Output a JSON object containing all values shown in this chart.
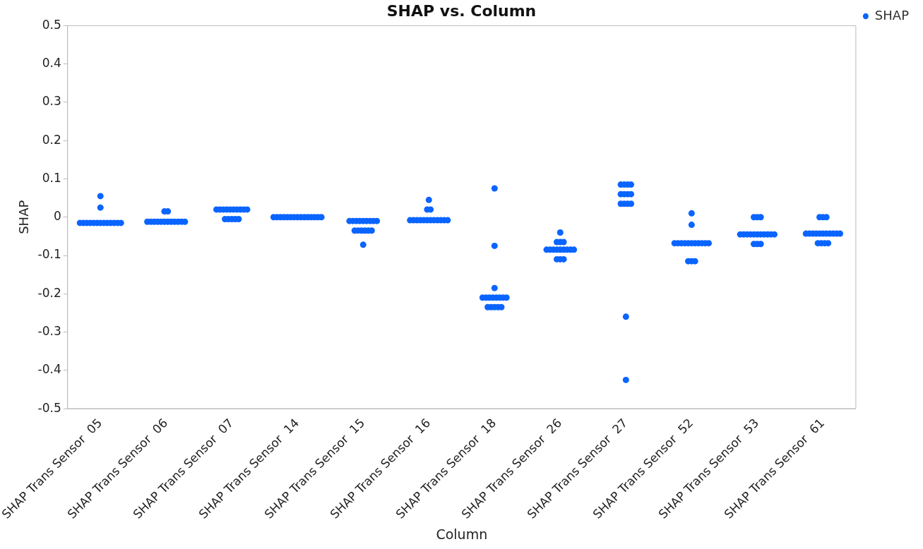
{
  "chart_data": {
    "type": "scatter",
    "title": "SHAP vs. Column",
    "xlabel": "Column",
    "ylabel": "SHAP",
    "categories": [
      "SHAP Trans Sensor  05",
      "SHAP Trans Sensor  06",
      "SHAP Trans Sensor  07",
      "SHAP Trans Sensor  14",
      "SHAP Trans Sensor  15",
      "SHAP Trans Sensor  16",
      "SHAP Trans Sensor  18",
      "SHAP Trans Sensor  26",
      "SHAP Trans Sensor  27",
      "SHAP Trans Sensor  52",
      "SHAP Trans Sensor  53",
      "SHAP Trans Sensor  61"
    ],
    "series": [
      {
        "name": "SHAP",
        "color": "#0a64ff",
        "x": [
          "SHAP Trans Sensor  05",
          "SHAP Trans Sensor  05",
          "SHAP Trans Sensor  05",
          "SHAP Trans Sensor  05",
          "SHAP Trans Sensor  05",
          "SHAP Trans Sensor  05",
          "SHAP Trans Sensor  05",
          "SHAP Trans Sensor  05",
          "SHAP Trans Sensor  05",
          "SHAP Trans Sensor  05",
          "SHAP Trans Sensor  05",
          "SHAP Trans Sensor  05",
          "SHAP Trans Sensor  05",
          "SHAP Trans Sensor  05",
          "SHAP Trans Sensor  05",
          "SHAP Trans Sensor  06",
          "SHAP Trans Sensor  06",
          "SHAP Trans Sensor  06",
          "SHAP Trans Sensor  06",
          "SHAP Trans Sensor  06",
          "SHAP Trans Sensor  06",
          "SHAP Trans Sensor  06",
          "SHAP Trans Sensor  06",
          "SHAP Trans Sensor  06",
          "SHAP Trans Sensor  06",
          "SHAP Trans Sensor  06",
          "SHAP Trans Sensor  06",
          "SHAP Trans Sensor  06",
          "SHAP Trans Sensor  06",
          "SHAP Trans Sensor  07",
          "SHAP Trans Sensor  07",
          "SHAP Trans Sensor  07",
          "SHAP Trans Sensor  07",
          "SHAP Trans Sensor  07",
          "SHAP Trans Sensor  07",
          "SHAP Trans Sensor  07",
          "SHAP Trans Sensor  07",
          "SHAP Trans Sensor  07",
          "SHAP Trans Sensor  07",
          "SHAP Trans Sensor  07",
          "SHAP Trans Sensor  07",
          "SHAP Trans Sensor  07",
          "SHAP Trans Sensor  07",
          "SHAP Trans Sensor  07",
          "SHAP Trans Sensor  14",
          "SHAP Trans Sensor  14",
          "SHAP Trans Sensor  14",
          "SHAP Trans Sensor  14",
          "SHAP Trans Sensor  14",
          "SHAP Trans Sensor  14",
          "SHAP Trans Sensor  14",
          "SHAP Trans Sensor  14",
          "SHAP Trans Sensor  14",
          "SHAP Trans Sensor  14",
          "SHAP Trans Sensor  14",
          "SHAP Trans Sensor  14",
          "SHAP Trans Sensor  14",
          "SHAP Trans Sensor  14",
          "SHAP Trans Sensor  14",
          "SHAP Trans Sensor  15",
          "SHAP Trans Sensor  15",
          "SHAP Trans Sensor  15",
          "SHAP Trans Sensor  15",
          "SHAP Trans Sensor  15",
          "SHAP Trans Sensor  15",
          "SHAP Trans Sensor  15",
          "SHAP Trans Sensor  15",
          "SHAP Trans Sensor  15",
          "SHAP Trans Sensor  15",
          "SHAP Trans Sensor  15",
          "SHAP Trans Sensor  15",
          "SHAP Trans Sensor  15",
          "SHAP Trans Sensor  15",
          "SHAP Trans Sensor  15",
          "SHAP Trans Sensor  15",
          "SHAP Trans Sensor  16",
          "SHAP Trans Sensor  16",
          "SHAP Trans Sensor  16",
          "SHAP Trans Sensor  16",
          "SHAP Trans Sensor  16",
          "SHAP Trans Sensor  16",
          "SHAP Trans Sensor  16",
          "SHAP Trans Sensor  16",
          "SHAP Trans Sensor  16",
          "SHAP Trans Sensor  16",
          "SHAP Trans Sensor  16",
          "SHAP Trans Sensor  16",
          "SHAP Trans Sensor  16",
          "SHAP Trans Sensor  16",
          "SHAP Trans Sensor  16",
          "SHAP Trans Sensor  18",
          "SHAP Trans Sensor  18",
          "SHAP Trans Sensor  18",
          "SHAP Trans Sensor  18",
          "SHAP Trans Sensor  18",
          "SHAP Trans Sensor  18",
          "SHAP Trans Sensor  18",
          "SHAP Trans Sensor  18",
          "SHAP Trans Sensor  18",
          "SHAP Trans Sensor  18",
          "SHAP Trans Sensor  18",
          "SHAP Trans Sensor  18",
          "SHAP Trans Sensor  18",
          "SHAP Trans Sensor  18",
          "SHAP Trans Sensor  18",
          "SHAP Trans Sensor  18",
          "SHAP Trans Sensor  26",
          "SHAP Trans Sensor  26",
          "SHAP Trans Sensor  26",
          "SHAP Trans Sensor  26",
          "SHAP Trans Sensor  26",
          "SHAP Trans Sensor  26",
          "SHAP Trans Sensor  26",
          "SHAP Trans Sensor  26",
          "SHAP Trans Sensor  26",
          "SHAP Trans Sensor  26",
          "SHAP Trans Sensor  26",
          "SHAP Trans Sensor  26",
          "SHAP Trans Sensor  26",
          "SHAP Trans Sensor  26",
          "SHAP Trans Sensor  26",
          "SHAP Trans Sensor  26",
          "SHAP Trans Sensor  27",
          "SHAP Trans Sensor  27",
          "SHAP Trans Sensor  27",
          "SHAP Trans Sensor  27",
          "SHAP Trans Sensor  27",
          "SHAP Trans Sensor  27",
          "SHAP Trans Sensor  27",
          "SHAP Trans Sensor  27",
          "SHAP Trans Sensor  27",
          "SHAP Trans Sensor  27",
          "SHAP Trans Sensor  27",
          "SHAP Trans Sensor  27",
          "SHAP Trans Sensor  27",
          "SHAP Trans Sensor  27",
          "SHAP Trans Sensor  52",
          "SHAP Trans Sensor  52",
          "SHAP Trans Sensor  52",
          "SHAP Trans Sensor  52",
          "SHAP Trans Sensor  52",
          "SHAP Trans Sensor  52",
          "SHAP Trans Sensor  52",
          "SHAP Trans Sensor  52",
          "SHAP Trans Sensor  52",
          "SHAP Trans Sensor  52",
          "SHAP Trans Sensor  52",
          "SHAP Trans Sensor  52",
          "SHAP Trans Sensor  52",
          "SHAP Trans Sensor  52",
          "SHAP Trans Sensor  52",
          "SHAP Trans Sensor  52",
          "SHAP Trans Sensor  53",
          "SHAP Trans Sensor  53",
          "SHAP Trans Sensor  53",
          "SHAP Trans Sensor  53",
          "SHAP Trans Sensor  53",
          "SHAP Trans Sensor  53",
          "SHAP Trans Sensor  53",
          "SHAP Trans Sensor  53",
          "SHAP Trans Sensor  53",
          "SHAP Trans Sensor  53",
          "SHAP Trans Sensor  53",
          "SHAP Trans Sensor  53",
          "SHAP Trans Sensor  53",
          "SHAP Trans Sensor  53",
          "SHAP Trans Sensor  53",
          "SHAP Trans Sensor  53",
          "SHAP Trans Sensor  53",
          "SHAP Trans Sensor  61",
          "SHAP Trans Sensor  61",
          "SHAP Trans Sensor  61",
          "SHAP Trans Sensor  61",
          "SHAP Trans Sensor  61",
          "SHAP Trans Sensor  61",
          "SHAP Trans Sensor  61",
          "SHAP Trans Sensor  61",
          "SHAP Trans Sensor  61",
          "SHAP Trans Sensor  61",
          "SHAP Trans Sensor  61",
          "SHAP Trans Sensor  61",
          "SHAP Trans Sensor  61",
          "SHAP Trans Sensor  61",
          "SHAP Trans Sensor  61",
          "SHAP Trans Sensor  61",
          "SHAP Trans Sensor  61",
          "SHAP Trans Sensor  61"
        ],
        "values": [
          -0.015,
          -0.015,
          -0.015,
          -0.015,
          -0.015,
          -0.015,
          -0.015,
          -0.015,
          -0.015,
          -0.015,
          -0.015,
          -0.015,
          -0.015,
          0.025,
          0.055,
          -0.012,
          -0.012,
          -0.012,
          -0.012,
          -0.012,
          -0.012,
          -0.012,
          -0.012,
          -0.012,
          -0.012,
          -0.012,
          -0.012,
          0.015,
          0.015,
          0.02,
          0.02,
          0.02,
          0.02,
          0.02,
          0.02,
          0.02,
          0.02,
          0.02,
          0.02,
          -0.005,
          -0.005,
          -0.005,
          -0.005,
          -0.005,
          0,
          0,
          0,
          0,
          0,
          0,
          0,
          0,
          0,
          0,
          0,
          0,
          0,
          0,
          0,
          -0.01,
          -0.01,
          -0.01,
          -0.01,
          -0.01,
          -0.01,
          -0.01,
          -0.01,
          -0.01,
          -0.035,
          -0.035,
          -0.035,
          -0.035,
          -0.035,
          -0.035,
          -0.072,
          -0.008,
          -0.008,
          -0.008,
          -0.008,
          -0.008,
          -0.008,
          -0.008,
          -0.008,
          -0.008,
          -0.008,
          -0.008,
          -0.008,
          0.02,
          0.02,
          0.045,
          0.075,
          -0.075,
          -0.185,
          -0.21,
          -0.21,
          -0.21,
          -0.21,
          -0.21,
          -0.21,
          -0.21,
          -0.21,
          -0.235,
          -0.235,
          -0.235,
          -0.235,
          -0.235,
          -0.04,
          -0.065,
          -0.065,
          -0.065,
          -0.085,
          -0.085,
          -0.085,
          -0.085,
          -0.085,
          -0.085,
          -0.085,
          -0.085,
          -0.085,
          -0.11,
          -0.11,
          -0.11,
          0.085,
          0.085,
          0.085,
          0.085,
          0.06,
          0.06,
          0.06,
          0.06,
          0.035,
          0.035,
          0.035,
          0.035,
          -0.26,
          -0.425,
          0.01,
          -0.02,
          -0.068,
          -0.068,
          -0.068,
          -0.068,
          -0.068,
          -0.068,
          -0.068,
          -0.068,
          -0.068,
          -0.068,
          -0.068,
          -0.115,
          -0.115,
          -0.115,
          0,
          0,
          0,
          -0.045,
          -0.045,
          -0.045,
          -0.045,
          -0.045,
          -0.045,
          -0.045,
          -0.045,
          -0.045,
          -0.045,
          -0.045,
          -0.07,
          -0.07,
          -0.07,
          0,
          0,
          0,
          -0.043,
          -0.043,
          -0.043,
          -0.043,
          -0.043,
          -0.043,
          -0.043,
          -0.043,
          -0.043,
          -0.043,
          -0.043,
          -0.068,
          -0.068,
          -0.068,
          -0.068
        ]
      }
    ],
    "ylim": [
      -0.5,
      0.5
    ],
    "yticks": [
      -0.5,
      -0.4,
      -0.3,
      -0.2,
      -0.1,
      0,
      0.1,
      0.2,
      0.3,
      0.4,
      0.5
    ],
    "grid": false,
    "legend": "top right",
    "marker": "circle"
  }
}
